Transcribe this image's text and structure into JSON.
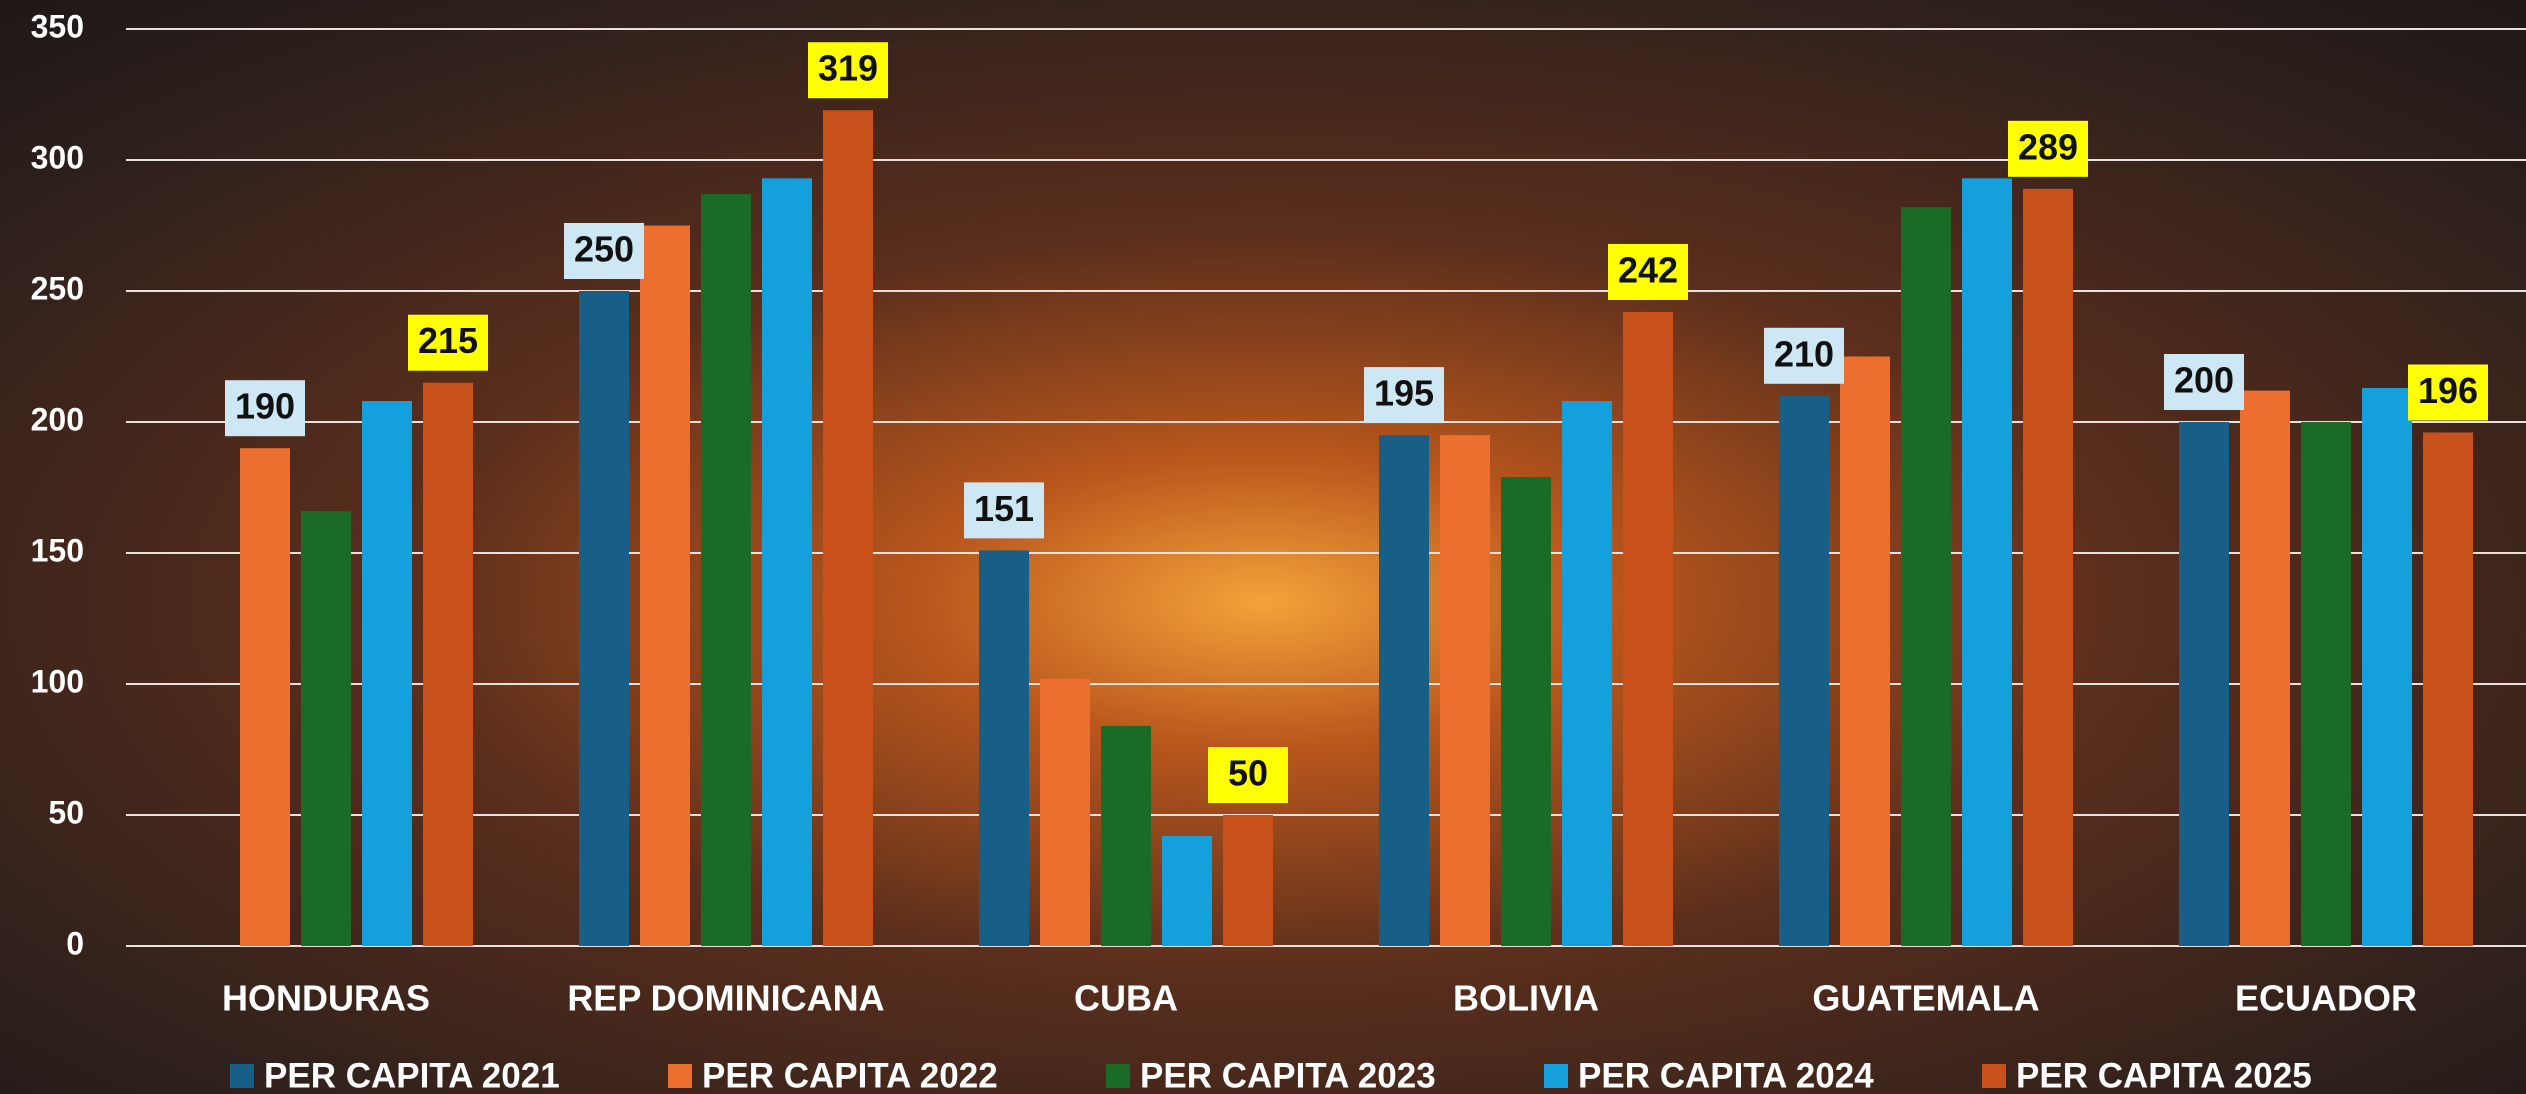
{
  "chart_data": {
    "type": "bar",
    "categories": [
      "HONDURAS",
      "REP DOMINICANA",
      "CUBA",
      "BOLIVIA",
      "GUATEMALA",
      "ECUADOR"
    ],
    "series": [
      {
        "name": "PER CAPITA 2021",
        "color": "#175f86",
        "label_bg": "#cde7f5",
        "values": [
          null,
          250,
          151,
          195,
          210,
          200
        ]
      },
      {
        "name": "PER CAPITA 2022",
        "color": "#ec6f30",
        "values": [
          190,
          275,
          102,
          195,
          225,
          212
        ]
      },
      {
        "name": "PER CAPITA 2023",
        "color": "#1a6b26",
        "values": [
          166,
          287,
          84,
          179,
          282,
          200
        ]
      },
      {
        "name": "PER CAPITA 2024",
        "color": "#14a0dc",
        "values": [
          208,
          293,
          42,
          208,
          293,
          213
        ]
      },
      {
        "name": "PER CAPITA 2025",
        "color": "#c8501a",
        "label_bg": "#ffff00",
        "values": [
          215,
          319,
          50,
          242,
          289,
          196
        ]
      }
    ],
    "ylim": [
      0,
      350
    ],
    "yticks": [
      0,
      50,
      100,
      150,
      200,
      250,
      300,
      350
    ],
    "grid": true,
    "legend": "bottom"
  }
}
